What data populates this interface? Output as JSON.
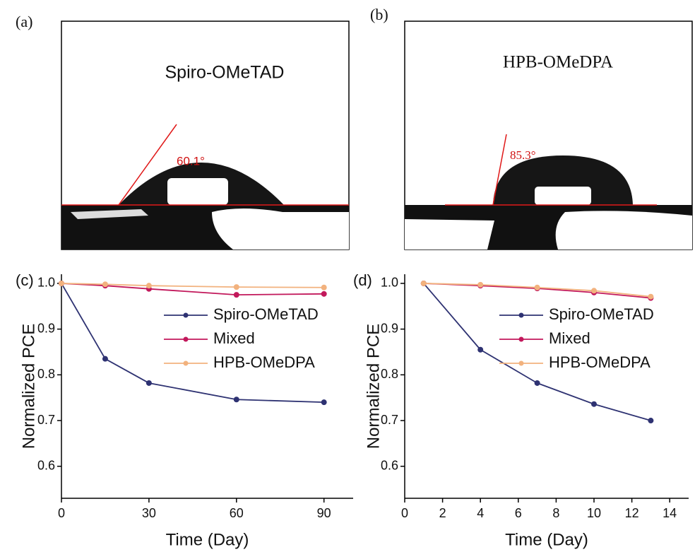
{
  "panels": [
    {
      "label": "(a)",
      "sample": "Spiro-OMeTAD",
      "angle": "60.1°"
    },
    {
      "label": "(b)",
      "sample": "HPB-OMeDPA",
      "angle": "85.3°"
    }
  ],
  "chart_data": [
    {
      "type": "line",
      "panel": "(c)",
      "xlabel": "Time (Day)",
      "ylabel": "Normalized PCE",
      "x": [
        0,
        15,
        30,
        60,
        90
      ],
      "series": [
        {
          "name": "Spiro-OMeTAD",
          "color": "#2e3272",
          "values": [
            1.0,
            0.835,
            0.782,
            0.746,
            0.74
          ]
        },
        {
          "name": "Mixed",
          "color": "#c2185b",
          "values": [
            1.0,
            0.995,
            0.988,
            0.975,
            0.977
          ]
        },
        {
          "name": "HPB-OMeDPA",
          "color": "#f2b27e",
          "values": [
            1.0,
            0.998,
            0.995,
            0.992,
            0.991
          ]
        }
      ],
      "xlim": [
        0,
        100
      ],
      "xticks": [
        0,
        30,
        60,
        90
      ],
      "ylim": [
        0.53,
        1.02
      ],
      "yticks": [
        0.6,
        0.7,
        0.8,
        0.9,
        {
          "value": 1.0,
          "label": "1.0"
        }
      ],
      "legend": "upper right"
    },
    {
      "type": "line",
      "panel": "(d)",
      "xlabel": "Time (Day)",
      "ylabel": "Normalized PCE",
      "x": [
        1,
        4,
        7,
        10,
        13
      ],
      "series": [
        {
          "name": "Spiro-OMeTAD",
          "color": "#2e3272",
          "values": [
            1.0,
            0.855,
            0.782,
            0.736,
            0.7
          ]
        },
        {
          "name": "Mixed",
          "color": "#c2185b",
          "values": [
            1.0,
            0.995,
            0.989,
            0.98,
            0.968
          ]
        },
        {
          "name": "HPB-OMeDPA",
          "color": "#f2b27e",
          "values": [
            1.0,
            0.997,
            0.991,
            0.984,
            0.971
          ]
        }
      ],
      "xlim": [
        0,
        15
      ],
      "xticks": [
        0,
        2,
        4,
        6,
        8,
        10,
        12,
        14
      ],
      "ylim": [
        0.53,
        1.02
      ],
      "yticks": [
        0.6,
        0.7,
        0.8,
        0.9,
        {
          "value": 1.0,
          "label": "1.0"
        }
      ],
      "legend": "upper right"
    }
  ]
}
